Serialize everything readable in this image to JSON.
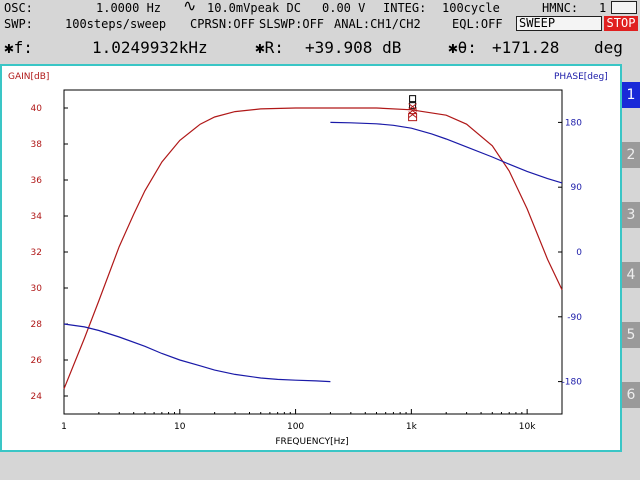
{
  "status": {
    "osc_label": "OSC:",
    "osc_freq": "1.0000 Hz",
    "osc_wave": "∿",
    "osc_amp": "10.0mVpeak DC",
    "osc_dc": "0.00 V",
    "integ": "INTEG:",
    "integ_value": "100cycle",
    "hmnc": "HMNC:",
    "hmnc_value": "1",
    "swp": "SWP:",
    "swp_value": "100steps/sweep",
    "cprsn": "CPRSN:OFF",
    "slswp": "SLSWP:OFF",
    "anal": "ANAL:CH1/CH2",
    "eql": "EQL:OFF",
    "sweep_button": "SWEEP",
    "stop_button": "STOP"
  },
  "readout": {
    "f_label": "✱f:",
    "f_value": "1.0249932kHz",
    "r_label": "✱R:",
    "r_value": "+39.908 dB",
    "theta_label": "✱θ:",
    "theta_value": "+171.28",
    "theta_unit": "deg"
  },
  "tabs": [
    "1",
    "2",
    "3",
    "4",
    "5",
    "6"
  ],
  "active_tab": "1",
  "colors": {
    "gain": "#b01818",
    "phase": "#1a1aa8",
    "frame": "#3ac6c6",
    "stop": "#e02020"
  },
  "chart_data": {
    "type": "line",
    "xlabel": "FREQUENCY[Hz]",
    "ylabel_left": "GAIN[dB]",
    "ylabel_right": "PHASE[deg]",
    "x_scale": "log",
    "xlim": [
      1,
      20000
    ],
    "ylim_left": [
      23,
      41
    ],
    "ylim_right": [
      -225,
      225
    ],
    "x_ticks": [
      1,
      10,
      100,
      1000,
      10000
    ],
    "x_tick_labels": [
      "1",
      "10",
      "100",
      "1k",
      "10k"
    ],
    "y_ticks_left": [
      24,
      26,
      28,
      30,
      32,
      34,
      36,
      38,
      40
    ],
    "y_ticks_right": [
      -180,
      -90,
      0,
      90,
      180
    ],
    "grid": false,
    "series": [
      {
        "axis": "left",
        "x": [
          1,
          1.5,
          2,
          3,
          4,
          5,
          7,
          10,
          15,
          20,
          30,
          50,
          100,
          200,
          500,
          1000,
          2000,
          3000,
          5000,
          7000,
          10000,
          15000,
          20000
        ],
        "values": [
          24.4,
          27.2,
          29.3,
          32.3,
          34.1,
          35.4,
          37.0,
          38.2,
          39.1,
          39.5,
          39.8,
          39.95,
          40.0,
          40.0,
          40.0,
          39.9,
          39.6,
          39.1,
          37.9,
          36.5,
          34.4,
          31.6,
          29.9
        ]
      },
      {
        "axis": "right",
        "x": [
          1,
          1.5,
          2,
          3,
          5,
          7,
          10,
          15,
          20,
          30,
          50,
          70,
          100,
          150,
          200
        ],
        "values": [
          -100,
          -104,
          -109,
          -118,
          -131,
          -141,
          -150,
          -158,
          -164,
          -170,
          -175,
          -177,
          -178,
          -179,
          -180
        ]
      },
      {
        "axis": "right",
        "x": [
          200,
          300,
          500,
          700,
          1000,
          1500,
          2000,
          3000,
          5000,
          7000,
          10000,
          15000,
          20000
        ],
        "values": [
          180,
          179.5,
          178,
          176,
          172,
          164,
          157,
          146,
          132,
          122,
          112,
          102,
          96
        ]
      }
    ],
    "marker": {
      "x": 1025,
      "gain": 39.908,
      "phase": 171.28
    }
  }
}
